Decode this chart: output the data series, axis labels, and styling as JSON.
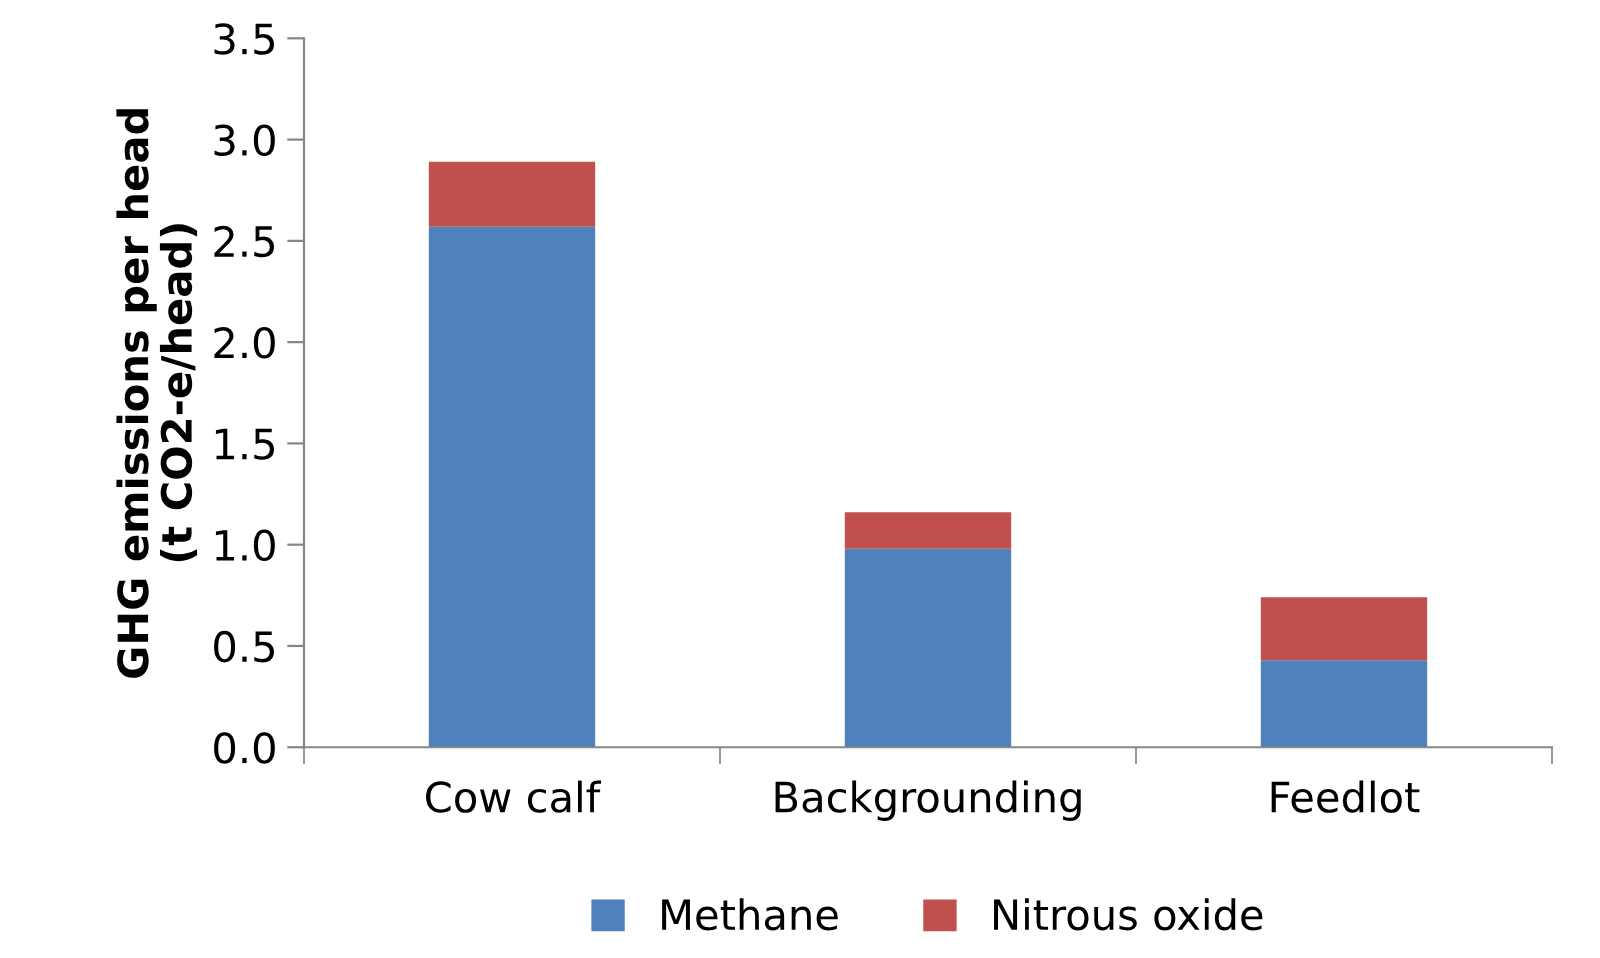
{
  "chart_data": {
    "type": "bar",
    "stacked": true,
    "ylabel": "GHG emissions per head\n(t CO2-e/head)",
    "categories": [
      "Cow calf",
      "Backgrounding",
      "Feedlot"
    ],
    "series": [
      {
        "name": "Methane",
        "color": "#4f81bd",
        "values": [
          2.57,
          0.98,
          0.43
        ]
      },
      {
        "name": "Nitrous oxide",
        "color": "#c0504d",
        "values": [
          0.32,
          0.18,
          0.31
        ]
      }
    ],
    "ylim": [
      0,
      3.5
    ],
    "yticks": [
      {
        "value": 0,
        "label": "0.0"
      },
      0.5,
      {
        "value": 1,
        "label": "1.0"
      },
      1.5,
      {
        "value": 2,
        "label": "2.0"
      },
      2.5,
      {
        "value": 3,
        "label": "3.0"
      },
      3.5
    ],
    "grid": false,
    "legend": "bottom"
  }
}
